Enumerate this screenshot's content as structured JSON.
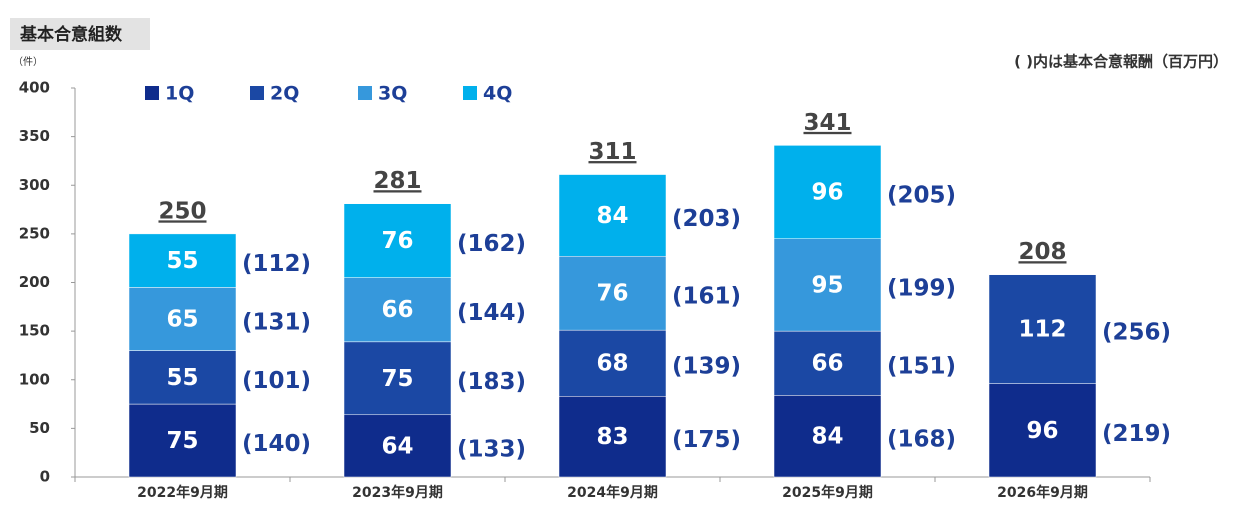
{
  "chart_data": {
    "type": "stacked-bar",
    "title": "基本合意組数",
    "y_unit": "（件）",
    "note": "( )内は基本合意報酬（百万円）",
    "categories": [
      "2022年9月期",
      "2023年9月期",
      "2024年9月期",
      "2025年9月期",
      "2026年9月期"
    ],
    "series": [
      {
        "name": "1Q",
        "color": "#0f2c8c",
        "values": [
          75,
          64,
          83,
          84,
          96
        ],
        "reward_labels": [
          "(140)",
          "(133)",
          "(175)",
          "(168)",
          "(219)"
        ]
      },
      {
        "name": "2Q",
        "color": "#1b48a4",
        "values": [
          55,
          75,
          68,
          66,
          112
        ],
        "reward_labels": [
          "(101)",
          "(183)",
          "(139)",
          "(151)",
          "(256)"
        ]
      },
      {
        "name": "3Q",
        "color": "#3698dc",
        "values": [
          65,
          66,
          76,
          95,
          null
        ],
        "reward_labels": [
          "(131)",
          "(144)",
          "(161)",
          "(199)",
          null
        ]
      },
      {
        "name": "4Q",
        "color": "#00b0ec",
        "values": [
          55,
          76,
          84,
          96,
          null
        ],
        "reward_labels": [
          "(112)",
          "(162)",
          "(203)",
          "(205)",
          null
        ]
      }
    ],
    "totals": [
      250,
      281,
      311,
      341,
      208
    ],
    "ylim": [
      0,
      400
    ],
    "yticks": [
      0,
      50,
      100,
      150,
      200,
      250,
      300,
      350,
      400
    ],
    "grid": false
  }
}
